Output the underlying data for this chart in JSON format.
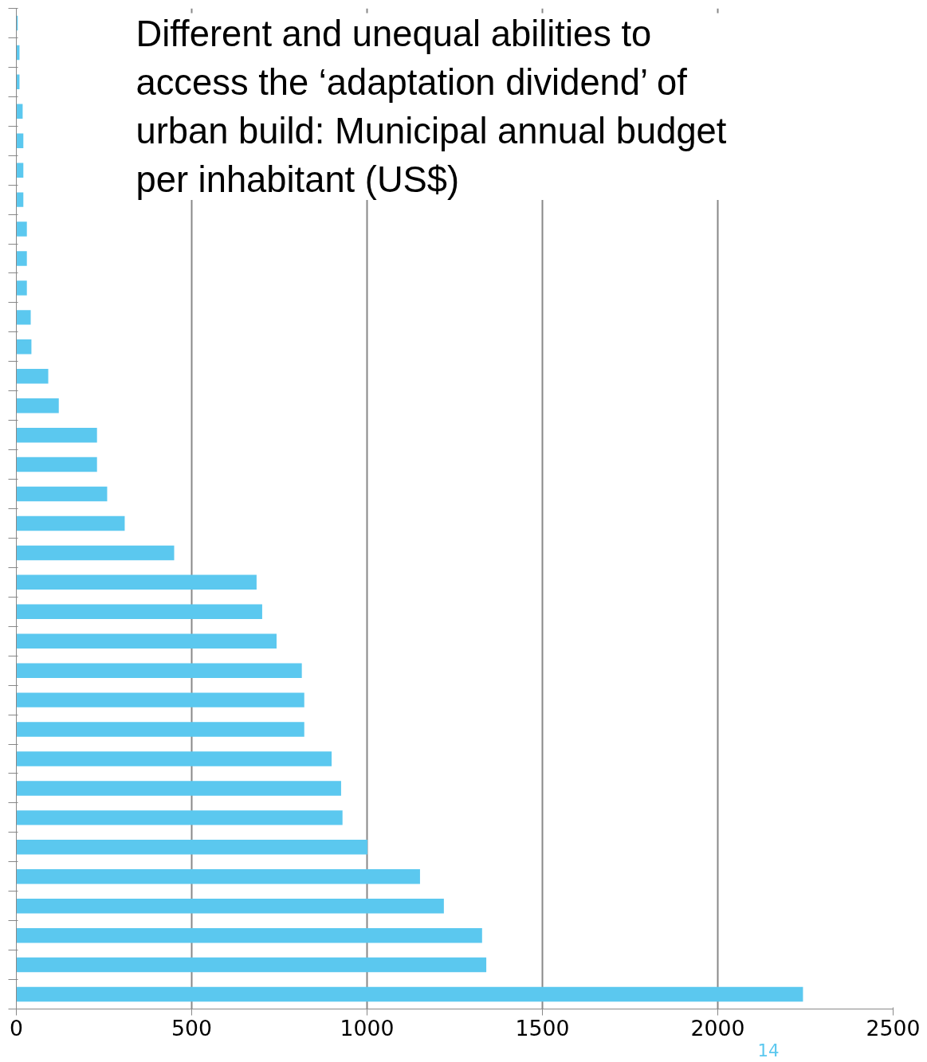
{
  "chart_data": {
    "type": "bar",
    "orientation": "horizontal",
    "title": "Different and unequal abilities to access the ‘adaptation dividend’ of urban build: Municipal annual budget per inhabitant (US$)",
    "categories": [
      null,
      null,
      null,
      null,
      null,
      null,
      null,
      null,
      null,
      null,
      null,
      null,
      null,
      null,
      null,
      null,
      null,
      null,
      null,
      null,
      null,
      null,
      null,
      null,
      null,
      null,
      null,
      null,
      null,
      null,
      null,
      null,
      null,
      null
    ],
    "values": [
      4,
      9,
      9,
      18,
      20,
      20,
      20,
      30,
      30,
      30,
      41,
      43,
      91,
      121,
      230,
      230,
      259,
      309,
      450,
      685,
      701,
      742,
      814,
      821,
      821,
      899,
      926,
      930,
      1001,
      1151,
      1219,
      1328,
      1340,
      2243
    ],
    "color": "#5bc8ef",
    "xlim": [
      0,
      2500
    ],
    "xticks": [
      0,
      500,
      1000,
      1500,
      2000,
      2500
    ],
    "grid": "x",
    "tick_labels": "x",
    "annotations": [
      "14"
    ]
  }
}
